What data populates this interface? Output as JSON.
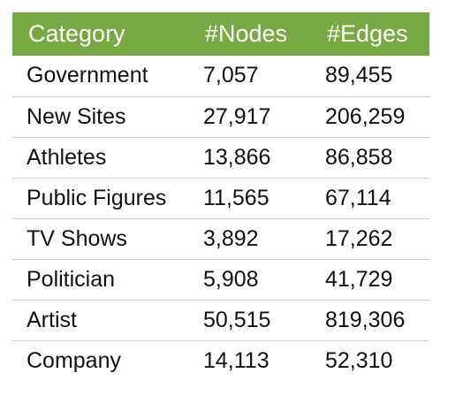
{
  "header": {
    "category": "Category",
    "nodes": "#Nodes",
    "edges": "#Edges"
  },
  "rows": [
    {
      "category": "Government",
      "nodes": "7,057",
      "edges": "89,455"
    },
    {
      "category": "New Sites",
      "nodes": "27,917",
      "edges": "206,259"
    },
    {
      "category": "Athletes",
      "nodes": "13,866",
      "edges": "86,858"
    },
    {
      "category": "Public Figures",
      "nodes": "11,565",
      "edges": "67,114"
    },
    {
      "category": "TV Shows",
      "nodes": "3,892",
      "edges": "17,262"
    },
    {
      "category": "Politician",
      "nodes": "5,908",
      "edges": "41,729"
    },
    {
      "category": "Artist",
      "nodes": "50,515",
      "edges": "819,306"
    },
    {
      "category": "Company",
      "nodes": "14,113",
      "edges": "52,310"
    }
  ],
  "colors": {
    "header_background": "#77aa44",
    "header_text": "#ffffff",
    "row_divider": "#cfcfcf"
  }
}
